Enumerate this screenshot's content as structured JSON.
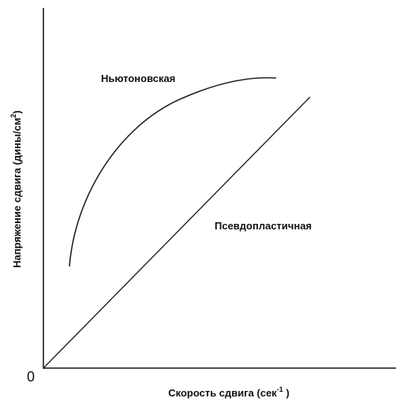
{
  "diagram": {
    "curves": [
      {
        "label": "Ньютоновская"
      },
      {
        "label": "Псевдопластичная"
      }
    ],
    "origin": "0",
    "x_label": {
      "text": "Скорость сдвига (сек",
      "sup": "-1",
      "end": " )"
    },
    "y_label": {
      "text": "Напряжение сдвига (дины/см",
      "sup": "2",
      "end": ")"
    }
  }
}
